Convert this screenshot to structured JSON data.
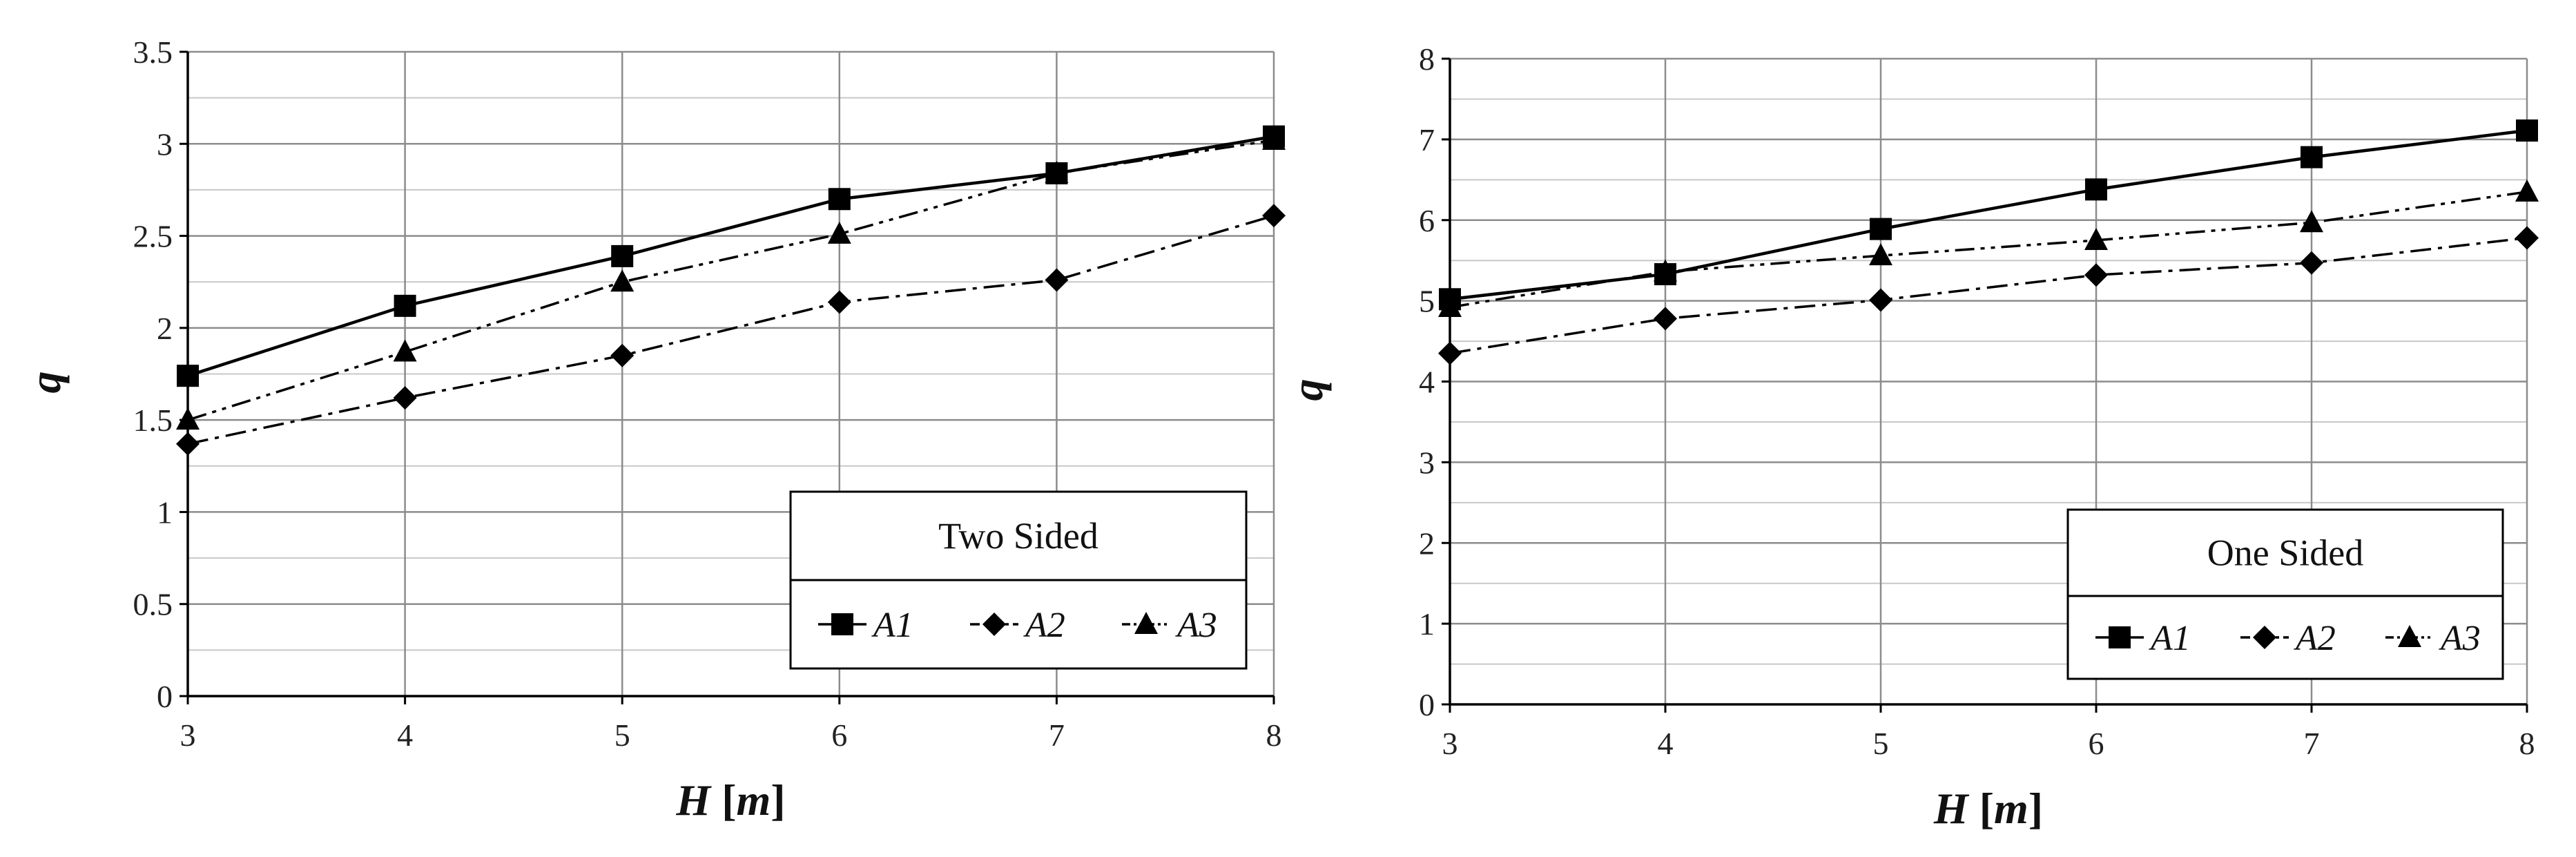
{
  "chart_data": [
    {
      "type": "line",
      "x": [
        3,
        4,
        5,
        6,
        7,
        8
      ],
      "xlim": [
        3,
        8
      ],
      "ylim": [
        0,
        3.5
      ],
      "ystep": 0.5,
      "yminor": 0.25,
      "xticks": [
        "3",
        "4",
        "5",
        "6",
        "7",
        "8"
      ],
      "yticks": [
        "0",
        "0.5",
        "1",
        "1.5",
        "2",
        "2.5",
        "3",
        "3.5"
      ],
      "xlabel_main": "H",
      "xlabel_unit": "m",
      "ylabel": "q",
      "legend_title": "Two Sided",
      "grid": true,
      "series": [
        {
          "name": "A1",
          "values": [
            1.74,
            2.12,
            2.39,
            2.7,
            2.84,
            3.04
          ],
          "marker": "square",
          "dash": "solid"
        },
        {
          "name": "A2",
          "values": [
            1.37,
            1.62,
            1.85,
            2.14,
            2.26,
            2.61
          ],
          "marker": "diamond",
          "dash": "dash-dot"
        },
        {
          "name": "A3",
          "values": [
            1.5,
            1.87,
            2.25,
            2.51,
            2.84,
            3.02
          ],
          "marker": "triangle",
          "dash": "dash-dot-dot"
        }
      ]
    },
    {
      "type": "line",
      "x": [
        3,
        4,
        5,
        6,
        7,
        8
      ],
      "xlim": [
        3,
        8
      ],
      "ylim": [
        0,
        8
      ],
      "ystep": 1,
      "yminor": 0.5,
      "xticks": [
        "3",
        "4",
        "5",
        "6",
        "7",
        "8"
      ],
      "yticks": [
        "0",
        "1",
        "2",
        "3",
        "4",
        "5",
        "6",
        "7",
        "8"
      ],
      "xlabel_main": "H",
      "xlabel_unit": "m",
      "ylabel": "q",
      "legend_title": "One Sided",
      "grid": true,
      "series": [
        {
          "name": "A1",
          "values": [
            5.02,
            5.33,
            5.89,
            6.38,
            6.78,
            7.11
          ],
          "marker": "square",
          "dash": "solid"
        },
        {
          "name": "A2",
          "values": [
            4.35,
            4.78,
            5.01,
            5.32,
            5.47,
            5.78
          ],
          "marker": "diamond",
          "dash": "dash-dot"
        },
        {
          "name": "A3",
          "values": [
            4.92,
            5.36,
            5.56,
            5.75,
            5.97,
            6.35
          ],
          "marker": "triangle",
          "dash": "dash-dot-dot"
        }
      ]
    }
  ]
}
